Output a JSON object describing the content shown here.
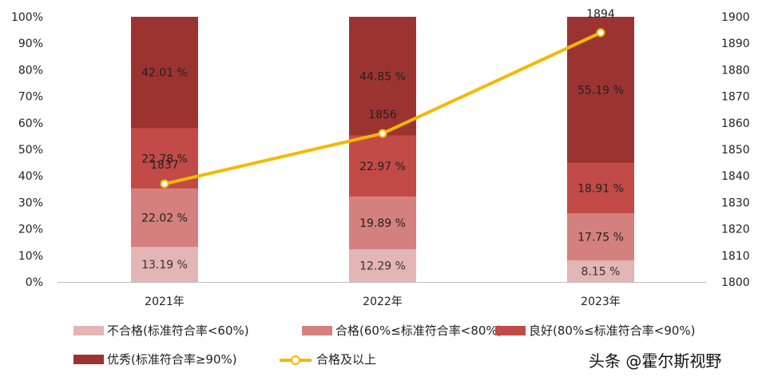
{
  "chart_data": {
    "type": "bar",
    "stacked": true,
    "categories": [
      "2021年",
      "2022年",
      "2023年"
    ],
    "series": [
      {
        "name": "不合格(标准符合率<60%)",
        "color": "#e3b5b4",
        "values": [
          13.19,
          12.29,
          8.15
        ],
        "labels": [
          "13.19 %",
          "12.29 %",
          "8.15 %"
        ]
      },
      {
        "name": "合格(60%≤标准符合率<80%)",
        "color": "#d4807e",
        "values": [
          22.02,
          19.89,
          17.75
        ],
        "labels": [
          "22.02 %",
          "19.89 %",
          "17.75 %"
        ]
      },
      {
        "name": "良好(80%≤标准符合率<90%)",
        "color": "#c24a47",
        "values": [
          22.78,
          22.97,
          18.91
        ],
        "labels": [
          "22.78 %",
          "22.97 %",
          "18.91 %"
        ]
      },
      {
        "name": "优秀(标准符合率≥90%)",
        "color": "#9b3431",
        "values": [
          42.01,
          44.85,
          55.19
        ],
        "labels": [
          "42.01 %",
          "44.85 %",
          "55.19 %"
        ]
      }
    ],
    "line_series": {
      "name": "合格及以上",
      "color": "#f5b800",
      "values": [
        1837,
        1856,
        1894
      ],
      "labels": [
        "1837",
        "1856",
        "1894"
      ]
    },
    "y_left": {
      "min": 0,
      "max": 100,
      "ticks": [
        "0%",
        "10%",
        "20%",
        "30%",
        "40%",
        "50%",
        "60%",
        "70%",
        "80%",
        "90%",
        "100%"
      ]
    },
    "y_right": {
      "min": 1800,
      "max": 1900,
      "ticks": [
        "1800",
        "1810",
        "1820",
        "1830",
        "1840",
        "1850",
        "1860",
        "1870",
        "1880",
        "1890",
        "1900"
      ]
    },
    "grid": false,
    "legend_position": "bottom"
  },
  "legend": {
    "items": [
      "不合格(标准符合率<60%)",
      "合格(60%≤标准符合率<80%)",
      "良好(80%≤标准符合率<90%)",
      "优秀(标准符合率≥90%)",
      "合格及以上"
    ]
  },
  "watermark": "头条 @霍尔斯视野"
}
